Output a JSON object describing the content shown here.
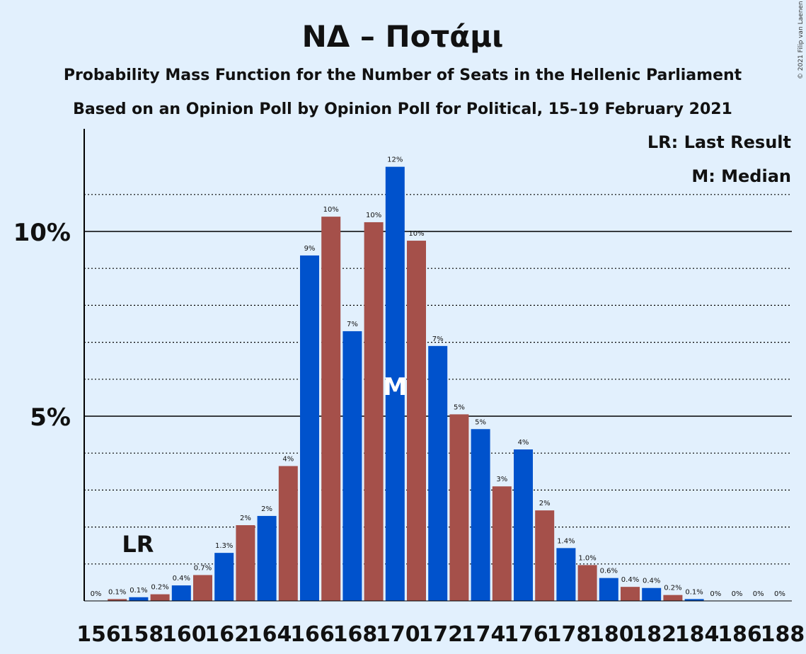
{
  "copyright": "© 2021 Filip van Laenen",
  "chart_data": {
    "type": "bar",
    "title": "ΝΔ – Ποτάμι",
    "subtitle": "Probability Mass Function for the Number of Seats in the Hellenic Parliament",
    "subtitle2": "Based on an Opinion Poll by Opinion Poll for Political, 15–19 February 2021",
    "legend": {
      "last_result": "LR: Last Result",
      "median": "M: Median",
      "placement": "top-right"
    },
    "last_result_marker": "LR",
    "last_result_seat": 158,
    "median_marker": "M",
    "median_seat": 170,
    "ylim": [
      0,
      12.5
    ],
    "yticks": [
      {
        "value": 5,
        "label": "5%"
      },
      {
        "value": 10,
        "label": "10%"
      }
    ],
    "dotted_gridlines": [
      1,
      2,
      3,
      4,
      6,
      7,
      8,
      9,
      11
    ],
    "x_tick_labels": [
      "156",
      "158",
      "160",
      "162",
      "164",
      "166",
      "168",
      "170",
      "172",
      "174",
      "176",
      "178",
      "180",
      "182",
      "184",
      "186",
      "188"
    ],
    "colors": {
      "odd": "#0052cc",
      "even": "#a5504a",
      "background": "#e2f0fd"
    },
    "bars": [
      {
        "seats": 156,
        "value": 0.0,
        "label": "0%"
      },
      {
        "seats": 157,
        "value": 0.05,
        "label": "0.1%"
      },
      {
        "seats": 158,
        "value": 0.1,
        "label": "0.1%"
      },
      {
        "seats": 159,
        "value": 0.18,
        "label": "0.2%"
      },
      {
        "seats": 160,
        "value": 0.42,
        "label": "0.4%"
      },
      {
        "seats": 161,
        "value": 0.7,
        "label": "0.7%"
      },
      {
        "seats": 162,
        "value": 1.3,
        "label": "1.3%"
      },
      {
        "seats": 163,
        "value": 2.05,
        "label": "2%"
      },
      {
        "seats": 164,
        "value": 2.3,
        "label": "2%"
      },
      {
        "seats": 165,
        "value": 3.65,
        "label": "4%"
      },
      {
        "seats": 166,
        "value": 9.35,
        "label": "9%"
      },
      {
        "seats": 167,
        "value": 10.4,
        "label": "10%"
      },
      {
        "seats": 168,
        "value": 7.3,
        "label": "7%"
      },
      {
        "seats": 169,
        "value": 10.25,
        "label": "10%"
      },
      {
        "seats": 170,
        "value": 11.75,
        "label": "12%"
      },
      {
        "seats": 171,
        "value": 9.75,
        "label": "10%"
      },
      {
        "seats": 172,
        "value": 6.9,
        "label": "7%"
      },
      {
        "seats": 173,
        "value": 5.05,
        "label": "5%"
      },
      {
        "seats": 174,
        "value": 4.65,
        "label": "5%"
      },
      {
        "seats": 175,
        "value": 3.1,
        "label": "3%"
      },
      {
        "seats": 176,
        "value": 4.1,
        "label": "4%"
      },
      {
        "seats": 177,
        "value": 2.45,
        "label": "2%"
      },
      {
        "seats": 178,
        "value": 1.43,
        "label": "1.4%"
      },
      {
        "seats": 179,
        "value": 0.97,
        "label": "1.0%"
      },
      {
        "seats": 180,
        "value": 0.62,
        "label": "0.6%"
      },
      {
        "seats": 181,
        "value": 0.38,
        "label": "0.4%"
      },
      {
        "seats": 182,
        "value": 0.35,
        "label": "0.4%"
      },
      {
        "seats": 183,
        "value": 0.16,
        "label": "0.2%"
      },
      {
        "seats": 184,
        "value": 0.05,
        "label": "0.1%"
      },
      {
        "seats": 185,
        "value": 0.0,
        "label": "0%"
      },
      {
        "seats": 186,
        "value": 0.0,
        "label": "0%"
      },
      {
        "seats": 187,
        "value": 0.0,
        "label": "0%"
      },
      {
        "seats": 188,
        "value": 0.0,
        "label": "0%"
      }
    ]
  }
}
